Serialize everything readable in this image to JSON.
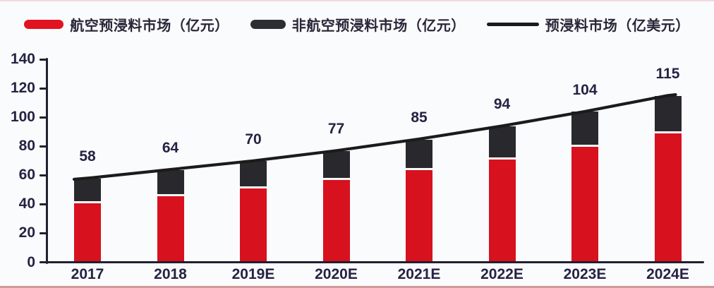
{
  "legend": {
    "items": [
      {
        "label": "航空预浸料市场（亿元）",
        "swatch": "red-bar"
      },
      {
        "label": "非航空预浸料市场（亿元）",
        "swatch": "dark-bar"
      },
      {
        "label": "预浸料市场（亿美元）",
        "swatch": "black-line"
      }
    ]
  },
  "chart_data": {
    "type": "bar",
    "subtype": "stacked-bars-with-trend-line",
    "title": "",
    "categories": [
      "2017",
      "2018",
      "2019E",
      "2020E",
      "2021E",
      "2022E",
      "2023E",
      "2024E"
    ],
    "series": [
      {
        "name": "航空预浸料市场（亿元）",
        "type": "bar",
        "color": "#d7111e",
        "values": [
          40,
          45,
          50,
          56,
          63,
          70,
          79,
          88
        ]
      },
      {
        "name": "非航空预浸料市场（亿元）",
        "type": "bar",
        "color": "#29282c",
        "values": [
          17,
          18,
          19,
          20,
          21,
          23,
          24,
          26
        ]
      },
      {
        "name": "预浸料市场（亿美元）",
        "type": "line",
        "color": "#1b1b1b",
        "values": [
          58,
          64,
          70,
          77,
          85,
          94,
          104,
          115
        ]
      }
    ],
    "point_labels": [
      "58",
      "64",
      "70",
      "77",
      "85",
      "94",
      "104",
      "115"
    ],
    "ylim": [
      0,
      140
    ],
    "ytick_step": 20,
    "yticks": [
      "0",
      "20",
      "40",
      "60",
      "80",
      "100",
      "120",
      "140"
    ],
    "xlabel": "",
    "ylabel": "",
    "grid": false,
    "legend_position": "top",
    "colors": {
      "axis": "#221f31",
      "text": "#262243",
      "background": "#fafbfc",
      "bottom_rule": "#cf9b9b"
    }
  }
}
